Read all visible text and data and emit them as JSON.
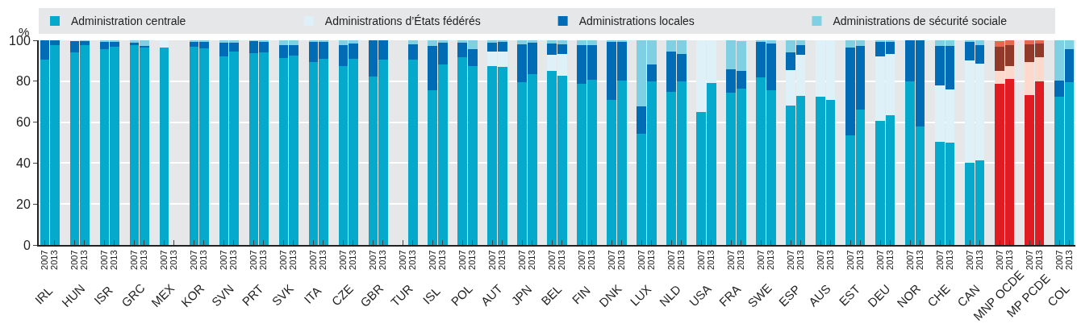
{
  "chart_data": {
    "type": "bar",
    "stacked": true,
    "ylabel": "%",
    "ylim": [
      0,
      100
    ],
    "yticks": [
      0,
      20,
      40,
      60,
      80,
      100
    ],
    "grid": "y",
    "legend": "top",
    "categories": [
      "2007",
      "2013",
      "2007",
      "2013",
      "2007",
      "2013",
      "2007",
      "2013",
      "2007",
      "2013",
      "2007",
      "2013",
      "2007",
      "2013",
      "2007",
      "2013",
      "2007",
      "2013",
      "2007",
      "2013",
      "2007",
      "2013",
      "2007",
      "2013",
      "2007",
      "2013",
      "2007",
      "2013",
      "2007",
      "2013",
      "2007",
      "2013",
      "2007",
      "2013",
      "2007",
      "2013",
      "2007",
      "2013",
      "2007",
      "2013",
      "2007",
      "2013",
      "2007",
      "2013",
      "2007",
      "2013",
      "2007",
      "2013",
      "2007",
      "2013",
      "2007",
      "2013",
      "2007",
      "2013",
      "2007",
      "2013",
      "2007",
      "2013",
      "2007",
      "2013",
      "2007",
      "2013",
      "2007",
      "2013",
      "2007",
      "2013",
      "2007",
      "2013",
      "2007",
      "2013"
    ],
    "annotations": [
      "IRL",
      "HUN",
      "ISR",
      "GRC",
      "MEX",
      "KOR",
      "SVN",
      "PRT",
      "SVK",
      "ITA",
      "CZE",
      "GBR",
      "TUR",
      "ISL",
      "POL",
      "AUT",
      "JPN",
      "BEL",
      "FIN",
      "DNK",
      "LUX",
      "NLD",
      "USA",
      "FRA",
      "SWE",
      "ESP",
      "AUS",
      "EST",
      "DEU",
      "NOR",
      "CHE",
      "CAN",
      "MNP OCDE",
      "MP PCDE",
      "COL"
    ],
    "series": [
      {
        "name": "Administration centrale",
        "color": "#05a9cc",
        "values": [
          90.5,
          97.6,
          94,
          97.6,
          95.6,
          96.8,
          97.6,
          96.8,
          96.4,
          null,
          96.8,
          96,
          92,
          94.4,
          93.7,
          94,
          91.3,
          92.5,
          89.3,
          90.9,
          87.3,
          90.9,
          82.1,
          90.5,
          null,
          90.5,
          75.4,
          88.1,
          91.7,
          87.3,
          87.3,
          86.9,
          79.4,
          83.3,
          84.9,
          82.5,
          78.6,
          80.6,
          71,
          80.2,
          54.4,
          79.8,
          75,
          79.8,
          65.1,
          79,
          74.6,
          76.2,
          81.7,
          75.4,
          68.3,
          73,
          72.6,
          71,
          53.6,
          66.3,
          60.7,
          63.5,
          79.8,
          57.9,
          50.4,
          50,
          40.1,
          41.3,
          null,
          null,
          null,
          null,
          72.6,
          79.4
        ]
      },
      {
        "name": "Administrations d’États fédérés",
        "color": "#dff1f8",
        "values": [
          null,
          null,
          null,
          null,
          null,
          null,
          null,
          null,
          3.6,
          null,
          null,
          null,
          null,
          null,
          null,
          null,
          null,
          null,
          null,
          null,
          null,
          null,
          null,
          null,
          null,
          null,
          null,
          null,
          null,
          null,
          7.1,
          7.5,
          null,
          null,
          7.9,
          10.7,
          null,
          null,
          null,
          null,
          null,
          null,
          null,
          null,
          34.9,
          21,
          null,
          null,
          null,
          null,
          17.1,
          19.8,
          27.4,
          29,
          null,
          null,
          31.4,
          29.8,
          null,
          null,
          27.4,
          25.8,
          49.9,
          47.2,
          null,
          null,
          null,
          null,
          null,
          null
        ]
      },
      {
        "name": "Administrations locales",
        "color": "#006cb5",
        "values": [
          9.5,
          2.4,
          5.6,
          2.2,
          3.6,
          2.8,
          1.2,
          0.4,
          null,
          null,
          2.8,
          3.2,
          6.7,
          4.4,
          6,
          5.6,
          6.3,
          5.2,
          10.3,
          8.7,
          10.3,
          7.5,
          17.9,
          9.5,
          null,
          7.5,
          21.8,
          10.7,
          7.1,
          8.3,
          4.4,
          4.8,
          18.6,
          15.5,
          5.6,
          4.8,
          18.9,
          16.9,
          28.6,
          19.4,
          13.5,
          8.3,
          19.4,
          13.5,
          null,
          null,
          11.1,
          8.9,
          17.5,
          22.9,
          8.7,
          4.8,
          null,
          null,
          42.9,
          31,
          7.5,
          6.3,
          20.2,
          42.1,
          19.4,
          21.4,
          9.5,
          9.1,
          null,
          null,
          null,
          null,
          7.9,
          16.3
        ]
      },
      {
        "name": "Administrations de sécurité sociale",
        "color": "#7fd0e3",
        "values": [
          null,
          null,
          null,
          0.4,
          0.8,
          0.4,
          1.2,
          2.8,
          null,
          null,
          0.4,
          0.8,
          1.2,
          1.2,
          0.3,
          0.4,
          2.4,
          2.4,
          0.4,
          0.4,
          2.4,
          1.6,
          null,
          null,
          null,
          2,
          2.8,
          1.2,
          1.2,
          4.4,
          1.2,
          0.8,
          2,
          1.2,
          1.6,
          2,
          2.4,
          2.4,
          0.4,
          0.4,
          32.1,
          11.9,
          5.6,
          6.7,
          null,
          null,
          14.3,
          14.7,
          0.8,
          1.6,
          5.9,
          2.4,
          null,
          null,
          3.5,
          2.8,
          0.4,
          0.4,
          null,
          null,
          2.8,
          2.8,
          0.4,
          2.4,
          null,
          null,
          null,
          null,
          19.4,
          4.4
        ]
      },
      {
        "color": "#e01c22",
        "values": [
          null,
          null,
          null,
          null,
          null,
          null,
          null,
          null,
          null,
          null,
          null,
          null,
          null,
          null,
          null,
          null,
          null,
          null,
          null,
          null,
          null,
          null,
          null,
          null,
          null,
          null,
          null,
          null,
          null,
          null,
          null,
          null,
          null,
          null,
          null,
          null,
          null,
          null,
          null,
          null,
          null,
          null,
          null,
          null,
          null,
          null,
          null,
          null,
          null,
          null,
          null,
          null,
          null,
          null,
          null,
          null,
          null,
          null,
          null,
          null,
          null,
          null,
          null,
          null,
          78.6,
          81.3,
          73.4,
          79.8,
          null,
          null
        ]
      },
      {
        "color": "#fbd9cd",
        "values": [
          null,
          null,
          null,
          null,
          null,
          null,
          null,
          null,
          null,
          null,
          null,
          null,
          null,
          null,
          null,
          null,
          null,
          null,
          null,
          null,
          null,
          null,
          null,
          null,
          null,
          null,
          null,
          null,
          null,
          null,
          null,
          null,
          null,
          null,
          null,
          null,
          null,
          null,
          null,
          null,
          null,
          null,
          null,
          null,
          null,
          null,
          null,
          null,
          null,
          null,
          null,
          null,
          null,
          null,
          null,
          null,
          null,
          null,
          null,
          null,
          null,
          null,
          null,
          null,
          6.3,
          6.3,
          15.9,
          11.9,
          null,
          null
        ]
      },
      {
        "color": "#923a2a",
        "values": [
          null,
          null,
          null,
          null,
          null,
          null,
          null,
          null,
          null,
          null,
          null,
          null,
          null,
          null,
          null,
          null,
          null,
          null,
          null,
          null,
          null,
          null,
          null,
          null,
          null,
          null,
          null,
          null,
          null,
          null,
          null,
          null,
          null,
          null,
          null,
          null,
          null,
          null,
          null,
          null,
          null,
          null,
          null,
          null,
          null,
          null,
          null,
          null,
          null,
          null,
          null,
          null,
          null,
          null,
          null,
          null,
          null,
          null,
          null,
          null,
          null,
          null,
          null,
          null,
          11.9,
          9.9,
          8.7,
          6.6,
          null,
          null
        ]
      },
      {
        "color": "#e5694e",
        "values": [
          null,
          null,
          null,
          null,
          null,
          null,
          null,
          null,
          null,
          null,
          null,
          null,
          null,
          null,
          null,
          null,
          null,
          null,
          null,
          null,
          null,
          null,
          null,
          null,
          null,
          null,
          null,
          null,
          null,
          null,
          null,
          null,
          null,
          null,
          null,
          null,
          null,
          null,
          null,
          null,
          null,
          null,
          null,
          null,
          null,
          null,
          null,
          null,
          null,
          null,
          null,
          null,
          null,
          null,
          null,
          null,
          null,
          null,
          null,
          null,
          null,
          null,
          null,
          null,
          2.8,
          2.4,
          2,
          1.6,
          null,
          null
        ]
      }
    ]
  }
}
